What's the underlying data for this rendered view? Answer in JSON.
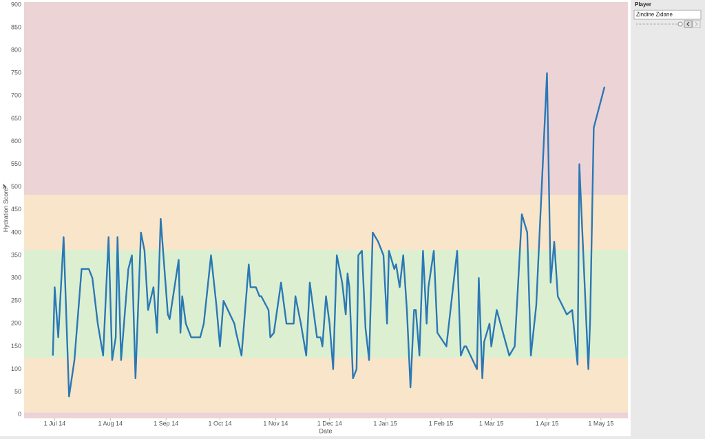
{
  "chart_data": {
    "type": "line",
    "x_label": "Date",
    "y_label": "Hydration Score",
    "color": "#2b78b5",
    "xlim": [
      "2014-06-14",
      "2015-05-16"
    ],
    "xticks": [
      {
        "value": "2014-07-01",
        "label": "1 Jul 14"
      },
      {
        "value": "2014-08-01",
        "label": "1 Aug 14"
      },
      {
        "value": "2014-09-01",
        "label": "1 Sep 14"
      },
      {
        "value": "2014-10-01",
        "label": "1 Oct 14"
      },
      {
        "value": "2014-11-01",
        "label": "1 Nov 14"
      },
      {
        "value": "2014-12-01",
        "label": "1 Dec 14"
      },
      {
        "value": "2015-01-01",
        "label": "1 Jan 15"
      },
      {
        "value": "2015-02-01",
        "label": "1 Feb 15"
      },
      {
        "value": "2015-03-01",
        "label": "1 Mar 15"
      },
      {
        "value": "2015-04-01",
        "label": "1 Apr 15"
      },
      {
        "value": "2015-05-01",
        "label": "1 May 15"
      }
    ],
    "ylim": [
      -8,
      906
    ],
    "yticks": [
      0,
      50,
      100,
      150,
      200,
      250,
      300,
      350,
      400,
      450,
      500,
      550,
      600,
      650,
      700,
      750,
      800,
      850,
      900
    ],
    "grid": false,
    "bands": [
      {
        "from": -8,
        "to": 5,
        "color": "#ecd3d6"
      },
      {
        "from": 5,
        "to": 125,
        "color": "#f9e5c9"
      },
      {
        "from": 125,
        "to": 362,
        "color": "#dcefd1"
      },
      {
        "from": 362,
        "to": 483,
        "color": "#f9e5c9"
      },
      {
        "from": 483,
        "to": 906,
        "color": "#ecd3d6"
      }
    ],
    "x": [
      "2014-06-30",
      "2014-07-01",
      "2014-07-03",
      "2014-07-06",
      "2014-07-09",
      "2014-07-12",
      "2014-07-16",
      "2014-07-20",
      "2014-07-22",
      "2014-07-25",
      "2014-07-28",
      "2014-07-31",
      "2014-08-02",
      "2014-08-04",
      "2014-08-05",
      "2014-08-07",
      "2014-08-11",
      "2014-08-13",
      "2014-08-15",
      "2014-08-18",
      "2014-08-20",
      "2014-08-22",
      "2014-08-25",
      "2014-08-27",
      "2014-08-29",
      "2014-09-02",
      "2014-09-03",
      "2014-09-08",
      "2014-09-09",
      "2014-09-10",
      "2014-09-12",
      "2014-09-15",
      "2014-09-20",
      "2014-09-22",
      "2014-09-26",
      "2014-09-29",
      "2014-10-01",
      "2014-10-03",
      "2014-10-09",
      "2014-10-10",
      "2014-10-13",
      "2014-10-17",
      "2014-10-18",
      "2014-10-21",
      "2014-10-23",
      "2014-10-24",
      "2014-10-28",
      "2014-10-29",
      "2014-10-31",
      "2014-11-04",
      "2014-11-07",
      "2014-11-11",
      "2014-11-12",
      "2014-11-15",
      "2014-11-18",
      "2014-11-20",
      "2014-11-22",
      "2014-11-24",
      "2014-11-26",
      "2014-11-27",
      "2014-11-29",
      "2014-12-01",
      "2014-12-03",
      "2014-12-05",
      "2014-12-08",
      "2014-12-10",
      "2014-12-11",
      "2014-12-12",
      "2014-12-14",
      "2014-12-16",
      "2014-12-17",
      "2014-12-19",
      "2014-12-21",
      "2014-12-23",
      "2014-12-25",
      "2014-12-28",
      "2014-12-31",
      "2015-01-02",
      "2015-01-03",
      "2015-01-06",
      "2015-01-07",
      "2015-01-09",
      "2015-01-11",
      "2015-01-13",
      "2015-01-15",
      "2015-01-17",
      "2015-01-18",
      "2015-01-20",
      "2015-01-22",
      "2015-01-24",
      "2015-01-25",
      "2015-01-28",
      "2015-01-30",
      "2015-02-04",
      "2015-02-10",
      "2015-02-12",
      "2015-02-14",
      "2015-02-15",
      "2015-02-21",
      "2015-02-22",
      "2015-02-24",
      "2015-02-25",
      "2015-02-28",
      "2015-03-01",
      "2015-03-04",
      "2015-03-11",
      "2015-03-14",
      "2015-03-18",
      "2015-03-21",
      "2015-03-23",
      "2015-03-26",
      "2015-04-01",
      "2015-04-03",
      "2015-04-05",
      "2015-04-07",
      "2015-04-12",
      "2015-04-15",
      "2015-04-18",
      "2015-04-19",
      "2015-04-24",
      "2015-04-25",
      "2015-04-27",
      "2015-05-03"
    ],
    "values": [
      130,
      280,
      170,
      390,
      40,
      120,
      320,
      320,
      300,
      200,
      130,
      390,
      120,
      170,
      390,
      120,
      320,
      350,
      80,
      400,
      360,
      230,
      280,
      180,
      430,
      220,
      210,
      340,
      180,
      260,
      200,
      170,
      170,
      200,
      350,
      240,
      150,
      250,
      200,
      180,
      130,
      330,
      280,
      280,
      260,
      260,
      230,
      170,
      180,
      290,
      200,
      200,
      260,
      200,
      130,
      290,
      230,
      170,
      170,
      150,
      260,
      200,
      100,
      350,
      290,
      220,
      310,
      280,
      80,
      100,
      350,
      360,
      190,
      120,
      400,
      380,
      350,
      200,
      360,
      320,
      330,
      280,
      350,
      230,
      60,
      230,
      230,
      130,
      360,
      200,
      280,
      360,
      180,
      150,
      360,
      130,
      150,
      150,
      100,
      300,
      80,
      160,
      200,
      150,
      230,
      130,
      150,
      440,
      400,
      130,
      240,
      750,
      290,
      380,
      260,
      220,
      230,
      110,
      550,
      100,
      210,
      630,
      720
    ]
  },
  "controls": {
    "player_title": "Player",
    "player_value": "Zindine Zidane"
  }
}
